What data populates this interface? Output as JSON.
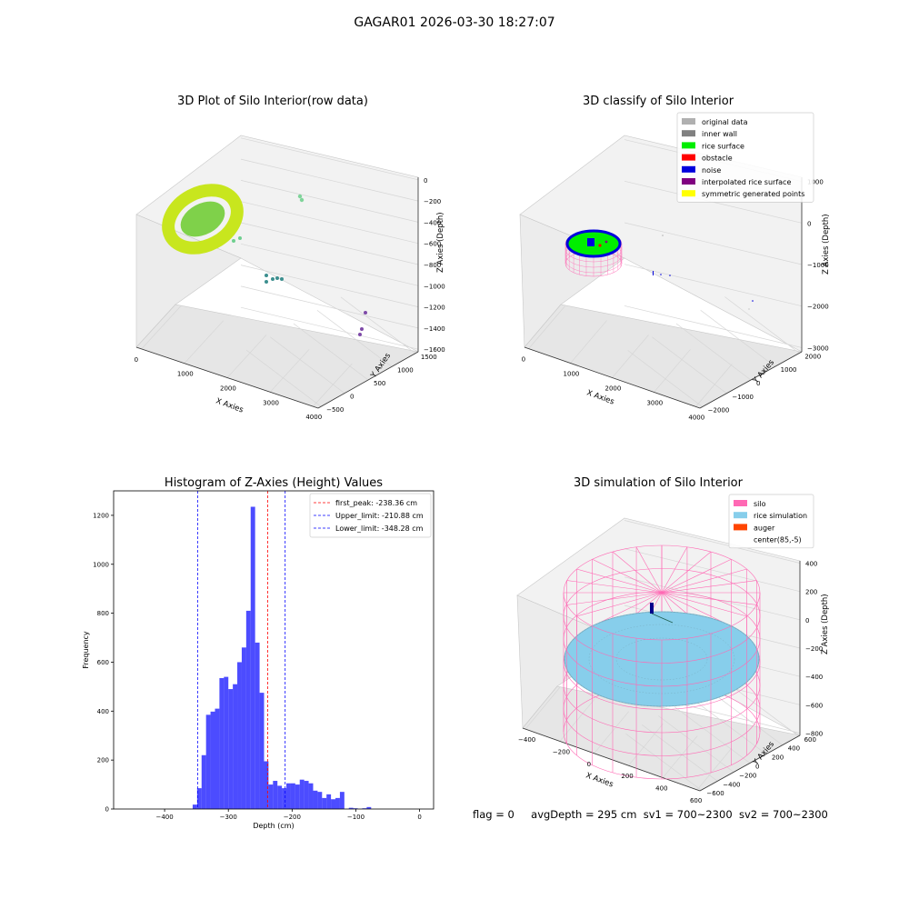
{
  "figure": {
    "title": "GAGAR01 2026-03-30 18:27:07"
  },
  "panels": {
    "raw": {
      "title": "3D Plot of Silo Interior(row data)",
      "xlabel": "X Axies",
      "ylabel": "Y Axies",
      "zlabel": "Z Axies (Depth)",
      "xticks": [
        "0",
        "1000",
        "2000",
        "3000",
        "4000"
      ],
      "yticks": [
        "−500",
        "0",
        "500",
        "1000",
        "1500"
      ],
      "zticks": [
        "0",
        "−200",
        "−400",
        "−600",
        "−800",
        "−1000",
        "−1200",
        "−1400",
        "−1600"
      ]
    },
    "classify": {
      "title": "3D classify of Silo Interior",
      "xlabel": "X Axies",
      "ylabel": "Y Axies",
      "zlabel": "Z Axies (Depth)",
      "xticks": [
        "0",
        "1000",
        "2000",
        "3000",
        "4000"
      ],
      "yticks": [
        "−2000",
        "−1000",
        "0",
        "1000",
        "2000"
      ],
      "zticks": [
        "1000",
        "0",
        "−1000",
        "−2000",
        "−3000"
      ],
      "legend": [
        {
          "label": "original data",
          "color": "#b0b0b0"
        },
        {
          "label": "inner wall",
          "color": "#808080"
        },
        {
          "label": "rice surface",
          "color": "#00ee00"
        },
        {
          "label": "obstacle",
          "color": "#ff0000"
        },
        {
          "label": "noise",
          "color": "#0000dd"
        },
        {
          "label": "interpolated rice surface",
          "color": "#800080"
        },
        {
          "label": "symmetric generated points",
          "color": "#ffff00"
        }
      ]
    },
    "simulation": {
      "title": "3D simulation of Silo Interior",
      "xlabel": "X Axies",
      "ylabel": "Y Axies",
      "zlabel": "Z Axies (Depth)",
      "xticks": [
        "−400",
        "−200",
        "0",
        "200",
        "400",
        "600"
      ],
      "yticks": [
        "−600",
        "−400",
        "−200",
        "0",
        "200",
        "400",
        "600"
      ],
      "zticks": [
        "400",
        "200",
        "0",
        "−200",
        "−400",
        "−600",
        "−800"
      ],
      "legend": [
        {
          "label": "silo",
          "color": "#ff69b4"
        },
        {
          "label": "rice simulation",
          "color": "#87ceeb"
        },
        {
          "label": "auger",
          "color": "#ff4500"
        },
        {
          "label": "center(85,-5)",
          "color": ""
        }
      ]
    }
  },
  "status": {
    "flag": "flag = 0",
    "avg_depth": "avgDepth = 295 cm",
    "sv1": "sv1 = 700~2300",
    "sv2": "sv2 = 700~2300"
  },
  "chart_data": [
    {
      "type": "bar",
      "title": "Histogram of Z-Axies (Height) Values",
      "xlabel": "Depth (cm)",
      "ylabel": "Frequency",
      "xlim": [
        -480,
        22
      ],
      "ylim": [
        0,
        1300
      ],
      "xticks": [
        -400,
        -300,
        -200,
        -100,
        0
      ],
      "yticks": [
        0,
        200,
        400,
        600,
        800,
        1000,
        1200
      ],
      "bin_edges_start": -356,
      "bin_width": 7,
      "values": [
        18,
        85,
        220,
        385,
        398,
        410,
        535,
        540,
        490,
        510,
        600,
        660,
        810,
        1235,
        680,
        475,
        195,
        100,
        115,
        95,
        85,
        105,
        105,
        100,
        120,
        115,
        105,
        75,
        70,
        45,
        60,
        40,
        45,
        70,
        0,
        5,
        3,
        0,
        3,
        8
      ],
      "bar_color": "#0000ff",
      "reference_lines": [
        {
          "label": "first_peak: -238.36 cm",
          "x": -238.36,
          "color": "#ff0000"
        },
        {
          "label": "Upper_limit: -210.88 cm",
          "x": -210.88,
          "color": "#0000ff"
        },
        {
          "label": "Lower_limit: -348.28 cm",
          "x": -348.28,
          "color": "#0000ff"
        }
      ],
      "legend_position": "top-right",
      "grid": false
    }
  ]
}
